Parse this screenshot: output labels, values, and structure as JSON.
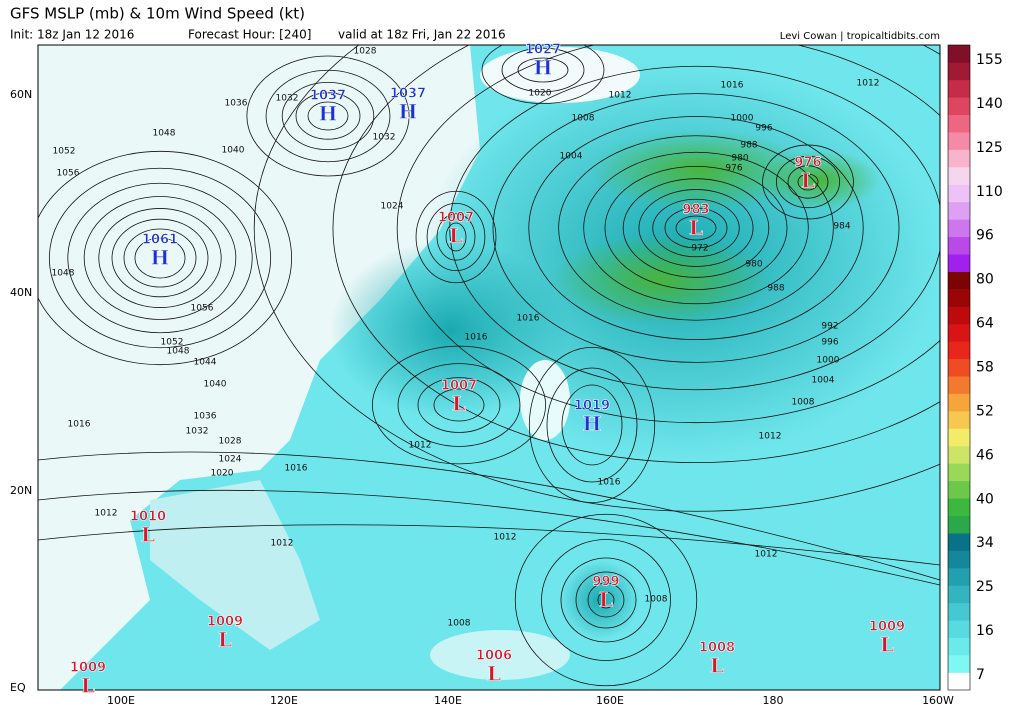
{
  "header": {
    "title": "GFS MSLP (mb) & 10m Wind Speed (kt)",
    "init": "Init: 18z Jan 12 2016",
    "forecast_hour": "Forecast Hour: [240]",
    "valid": "valid at 18z Fri, Jan 22 2016",
    "credit": "Levi Cowan | tropicaltidbits.com"
  },
  "map": {
    "lat_labels": [
      "60N",
      "40N",
      "20N",
      "EQ"
    ],
    "lon_labels": [
      "100E",
      "120E",
      "140E",
      "160E",
      "180",
      "160W"
    ],
    "centers": [
      {
        "symbol": "H",
        "value": 1027
      },
      {
        "symbol": "H",
        "value": 1037
      },
      {
        "symbol": "H",
        "value": 1037
      },
      {
        "symbol": "H",
        "value": 1061
      },
      {
        "symbol": "L",
        "value": 1007
      },
      {
        "symbol": "L",
        "value": 983
      },
      {
        "symbol": "L",
        "value": 976
      },
      {
        "symbol": "L",
        "value": 1007
      },
      {
        "symbol": "H",
        "value": 1019
      },
      {
        "symbol": "L",
        "value": 1010
      },
      {
        "symbol": "L",
        "value": 999
      },
      {
        "symbol": "L",
        "value": 1009
      },
      {
        "symbol": "L",
        "value": 1006
      },
      {
        "symbol": "L",
        "value": 1008
      },
      {
        "symbol": "L",
        "value": 1009
      },
      {
        "symbol": "L",
        "value": 1009
      }
    ],
    "isobar_labels": [
      1028,
      1020,
      1012,
      1016,
      1012,
      1036,
      1032,
      1032,
      1048,
      1040,
      1052,
      1056,
      1024,
      1008,
      1004,
      1000,
      996,
      988,
      980,
      976,
      984,
      972,
      980,
      988,
      992,
      996,
      1000,
      1004,
      1008,
      1012,
      1048,
      1056,
      1052,
      1048,
      1044,
      1040,
      1036,
      1032,
      1028,
      1024,
      1020,
      1016,
      1016,
      1016,
      1012,
      1016,
      1016,
      1012,
      1012,
      1012,
      1012,
      1008,
      1008
    ]
  },
  "colorbar": {
    "ticks": [
      155,
      140,
      125,
      110,
      96,
      80,
      64,
      58,
      52,
      46,
      40,
      34,
      25,
      16,
      7
    ]
  }
}
